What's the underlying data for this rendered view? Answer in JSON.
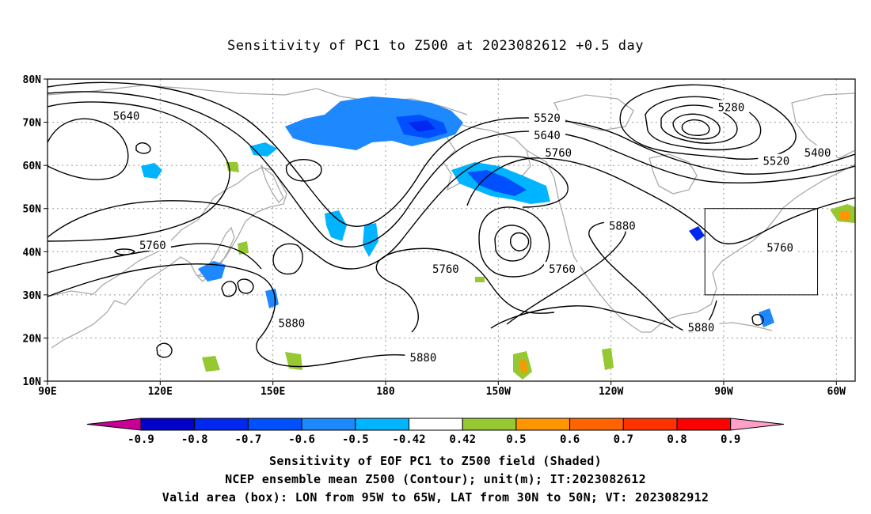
{
  "title": "Sensitivity of PC1 to Z500 at 2023082612 +0.5 day",
  "map": {
    "lon_range": [
      90,
      305
    ],
    "lat_range": [
      10,
      80
    ],
    "lon_ticks": [
      {
        "lon": 90,
        "label": "90E"
      },
      {
        "lon": 120,
        "label": "120E"
      },
      {
        "lon": 150,
        "label": "150E"
      },
      {
        "lon": 180,
        "label": "180"
      },
      {
        "lon": 210,
        "label": "150W"
      },
      {
        "lon": 240,
        "label": "120W"
      },
      {
        "lon": 270,
        "label": "90W"
      },
      {
        "lon": 300,
        "label": "60W"
      }
    ],
    "lat_ticks": [
      {
        "lat": 80,
        "label": "80N"
      },
      {
        "lat": 70,
        "label": "70N"
      },
      {
        "lat": 60,
        "label": "60N"
      },
      {
        "lat": 50,
        "label": "50N"
      },
      {
        "lat": 40,
        "label": "40N"
      },
      {
        "lat": 30,
        "label": "30N"
      },
      {
        "lat": 20,
        "label": "20N"
      },
      {
        "lat": 10,
        "label": "10N"
      }
    ],
    "contour_labels": [
      {
        "text": "5640",
        "lon": 111,
        "lat": 71.5
      },
      {
        "text": "5520",
        "lon": 223,
        "lat": 71
      },
      {
        "text": "5640",
        "lon": 223,
        "lat": 67
      },
      {
        "text": "5760",
        "lon": 226,
        "lat": 63
      },
      {
        "text": "5280",
        "lon": 272,
        "lat": 73.5
      },
      {
        "text": "5400",
        "lon": 295,
        "lat": 63
      },
      {
        "text": "5520",
        "lon": 284,
        "lat": 61
      },
      {
        "text": "5760",
        "lon": 118,
        "lat": 41.5
      },
      {
        "text": "5760",
        "lon": 196,
        "lat": 36
      },
      {
        "text": "5760",
        "lon": 227,
        "lat": 36
      },
      {
        "text": "5880",
        "lon": 243,
        "lat": 46
      },
      {
        "text": "5760",
        "lon": 285,
        "lat": 41
      },
      {
        "text": "5880",
        "lon": 155,
        "lat": 23.5
      },
      {
        "text": "5880",
        "lon": 190,
        "lat": 15.5
      },
      {
        "text": "5880",
        "lon": 264,
        "lat": 22.5
      }
    ],
    "valid_box": {
      "lon_min": 265,
      "lon_max": 295,
      "lat_min": 30,
      "lat_max": 50
    },
    "colors": {
      "land": "#aaaaaa",
      "contour": "#000000",
      "grid": "#999999"
    }
  },
  "colorbar": {
    "labels": [
      "-0.9",
      "-0.8",
      "-0.7",
      "-0.6",
      "-0.5",
      "-0.42",
      "0.42",
      "0.5",
      "0.6",
      "0.7",
      "0.8",
      "0.9"
    ],
    "colors": [
      "#c80096",
      "#0000c8",
      "#0028f0",
      "#0050ff",
      "#1e88ff",
      "#00b4ff",
      "#ffffff",
      "#96c832",
      "#ff9600",
      "#ff6400",
      "#ff3200",
      "#ff0000",
      "#ffa0c8"
    ]
  },
  "captions": [
    "Sensitivity of EOF PC1 to Z500 field (Shaded)",
    "NCEP ensemble mean Z500 (Contour); unit(m); IT:2023082612",
    "Valid area (box): LON from 95W to 65W, LAT from 30N to 50N; VT: 2023082912"
  ]
}
